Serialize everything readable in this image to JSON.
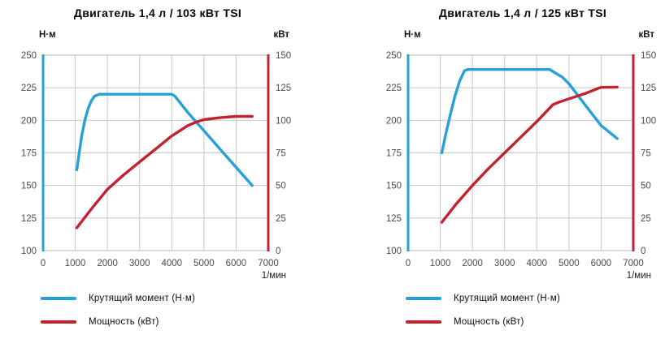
{
  "legend": {
    "torque_label": "Крутящий момент (Н·м)",
    "power_label": "Мощность (кВт)"
  },
  "colors": {
    "torque": "#27a0d6",
    "power": "#c2222f",
    "grid": "#c8c8c8",
    "tick_text": "#4c4c4c",
    "unit_text": "#1a1a1a"
  },
  "chart_data": [
    {
      "type": "line",
      "title": "Двигатель 1,4 л / 103 кВт TSI",
      "left_axis": {
        "unit": "Н·м",
        "ticks": [
          250,
          225,
          200,
          175,
          150,
          125,
          100
        ],
        "range": [
          100,
          250
        ]
      },
      "right_axis": {
        "unit": "кВт",
        "ticks": [
          150,
          125,
          100,
          75,
          50,
          25,
          0
        ],
        "range": [
          0,
          150
        ]
      },
      "x_axis": {
        "unit": "1/мин",
        "ticks": [
          0,
          1000,
          2000,
          3000,
          4000,
          5000,
          6000,
          7000
        ],
        "range": [
          0,
          7000
        ],
        "grid": true
      },
      "series": [
        {
          "name": "Крутящий момент (Н·м)",
          "axis": "left",
          "color_key": "torque",
          "points": [
            [
              1050,
              162
            ],
            [
              1100,
              171
            ],
            [
              1200,
              188
            ],
            [
              1300,
              200
            ],
            [
              1400,
              209
            ],
            [
              1500,
              215
            ],
            [
              1600,
              218.5
            ],
            [
              1750,
              220
            ],
            [
              4000,
              220
            ],
            [
              4100,
              218.5
            ],
            [
              4500,
              206
            ],
            [
              5000,
              192
            ],
            [
              5500,
              178
            ],
            [
              6000,
              164
            ],
            [
              6500,
              150
            ]
          ]
        },
        {
          "name": "Мощность (кВт)",
          "axis": "right",
          "color_key": "power",
          "points": [
            [
              1050,
              17.5
            ],
            [
              1500,
              32
            ],
            [
              2000,
              47
            ],
            [
              2500,
              58
            ],
            [
              3000,
              68
            ],
            [
              3500,
              78
            ],
            [
              4000,
              88
            ],
            [
              4500,
              96
            ],
            [
              4800,
              99
            ],
            [
              5000,
              100.5
            ],
            [
              5500,
              102
            ],
            [
              6000,
              103
            ],
            [
              6500,
              103
            ]
          ]
        }
      ]
    },
    {
      "type": "line",
      "title": "Двигатель 1,4 л / 125 кВт TSI",
      "left_axis": {
        "unit": "Н·м",
        "ticks": [
          250,
          225,
          200,
          175,
          150,
          125,
          100
        ],
        "range": [
          100,
          250
        ]
      },
      "right_axis": {
        "unit": "кВт",
        "ticks": [
          150,
          125,
          100,
          75,
          50,
          25,
          0
        ],
        "range": [
          0,
          150
        ]
      },
      "x_axis": {
        "unit": "1/мин",
        "ticks": [
          0,
          1000,
          2000,
          3000,
          4000,
          5000,
          6000,
          7000
        ],
        "range": [
          0,
          7000
        ],
        "grid": true
      },
      "series": [
        {
          "name": "Крутящий момент (Н·м)",
          "axis": "left",
          "color_key": "torque",
          "points": [
            [
              1050,
              175
            ],
            [
              1150,
              187
            ],
            [
              1300,
              203
            ],
            [
              1450,
              218
            ],
            [
              1600,
              230
            ],
            [
              1750,
              238
            ],
            [
              1850,
              239
            ],
            [
              4400,
              239
            ],
            [
              4600,
              236
            ],
            [
              4800,
              233
            ],
            [
              5000,
              228
            ],
            [
              5500,
              212
            ],
            [
              6000,
              196
            ],
            [
              6500,
              186
            ]
          ]
        },
        {
          "name": "Мощность (кВт)",
          "axis": "right",
          "color_key": "power",
          "points": [
            [
              1050,
              21.8
            ],
            [
              1500,
              36
            ],
            [
              2000,
              50
            ],
            [
              2500,
              63
            ],
            [
              3000,
              75
            ],
            [
              3500,
              87
            ],
            [
              4000,
              99
            ],
            [
              4500,
              112
            ],
            [
              4700,
              114
            ],
            [
              5000,
              116.5
            ],
            [
              5500,
              120.5
            ],
            [
              5900,
              124.5
            ],
            [
              6000,
              125.3
            ],
            [
              6500,
              125.5
            ]
          ]
        }
      ]
    }
  ]
}
